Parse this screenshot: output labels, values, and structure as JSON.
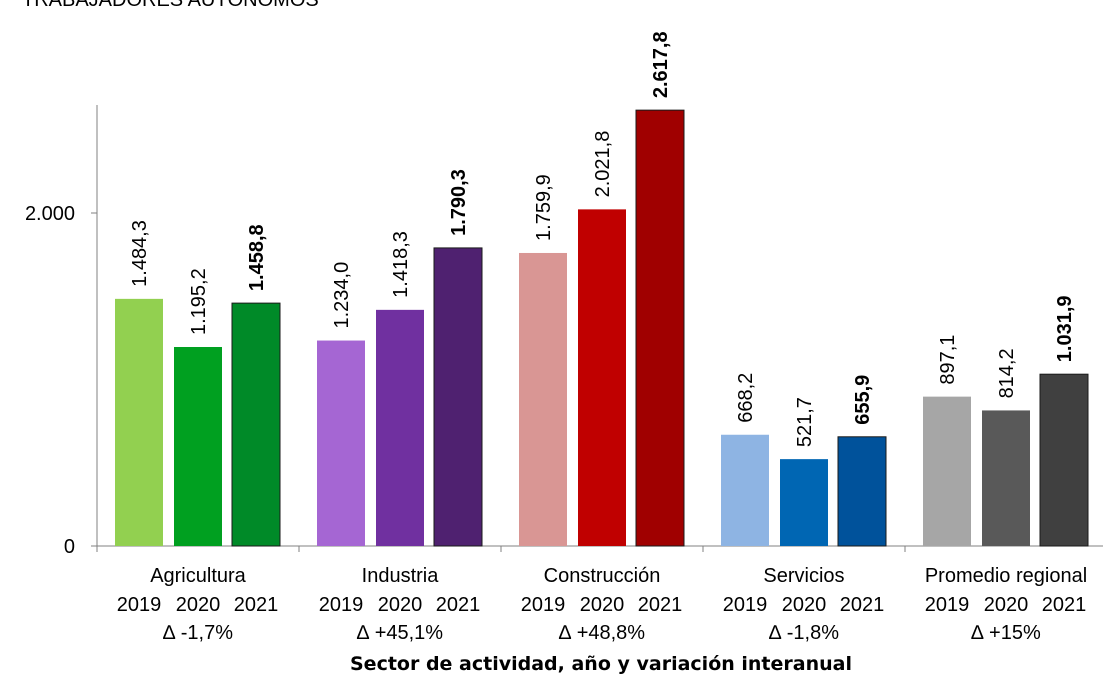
{
  "chart_data": {
    "type": "bar",
    "title": "TRABAJADORES AUTÓNOMOS",
    "xlabel": "Sector de actividad, año y variación interanual",
    "ylabel": "",
    "ylim": [
      0,
      2700
    ],
    "yticks": [
      0,
      2000
    ],
    "ytick_labels": [
      "0",
      "2.000"
    ],
    "grid": false,
    "legend": "none",
    "year_labels": [
      "2019",
      "2020",
      "2021"
    ],
    "groups": [
      {
        "name": "Agricultura",
        "delta": "∆ -1,7%",
        "values": [
          1484.3,
          1195.2,
          1458.8
        ],
        "labels": [
          "1.484,3",
          "1.195,2",
          "1.458,8"
        ],
        "colors": [
          "#92D050",
          "#00A020",
          "#008A28"
        ]
      },
      {
        "name": "Industria",
        "delta": "∆ +45,1%",
        "values": [
          1234.0,
          1418.3,
          1790.3
        ],
        "labels": [
          "1.234,0",
          "1.418,3",
          "1.790,3"
        ],
        "colors": [
          "#A566D3",
          "#7030A0",
          "#4F2170"
        ]
      },
      {
        "name": "Construcción",
        "delta": "∆ +48,8%",
        "values": [
          1759.9,
          2021.8,
          2617.8
        ],
        "labels": [
          "1.759,9",
          "2.021,8",
          "2.617,8"
        ],
        "colors": [
          "#D99694",
          "#C00000",
          "#A00000"
        ]
      },
      {
        "name": "Servicios",
        "delta": "∆ -1,8%",
        "values": [
          668.2,
          521.7,
          655.9
        ],
        "labels": [
          "668,2",
          "521,7",
          "655,9"
        ],
        "colors": [
          "#8EB4E3",
          "#0066B3",
          "#00529B"
        ]
      },
      {
        "name": "Promedio regional",
        "delta": "∆ +15%",
        "values": [
          897.1,
          814.2,
          1031.9
        ],
        "labels": [
          "897,1",
          "814,2",
          "1.031,9"
        ],
        "colors": [
          "#A6A6A6",
          "#595959",
          "#404040"
        ]
      }
    ],
    "bold_bar_index": 2
  }
}
